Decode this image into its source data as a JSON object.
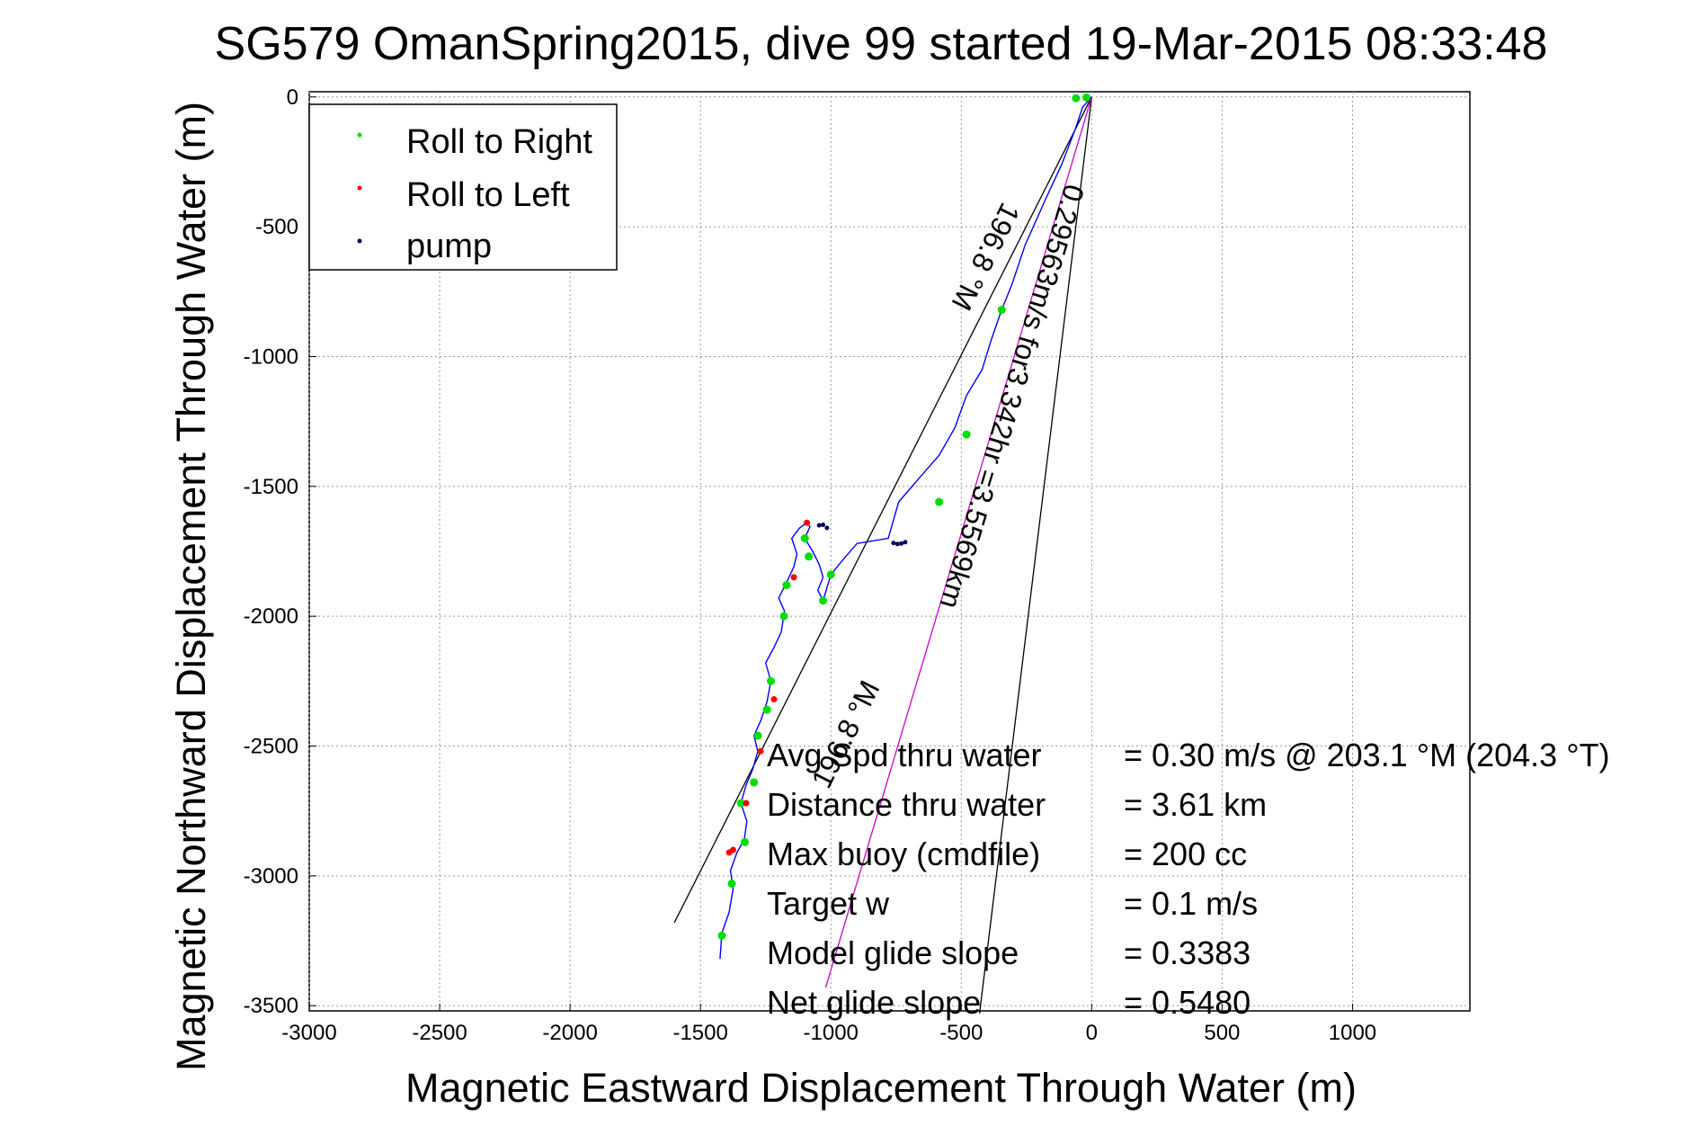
{
  "chart_data": {
    "type": "line",
    "title": "SG579 OmanSpring2015, dive 99 started 19-Mar-2015 08:33:48",
    "xlabel": "Magnetic Eastward Displacement Through Water (m)",
    "ylabel": "Magnetic Northward Displacement Through Water (m)",
    "xlim": [
      -3000,
      1450
    ],
    "ylim": [
      -3520,
      20
    ],
    "xticks": [
      -3000,
      -2500,
      -2000,
      -1500,
      -1000,
      -500,
      0,
      500,
      1000
    ],
    "yticks": [
      0,
      -500,
      -1000,
      -1500,
      -2000,
      -2500,
      -3000,
      -3500
    ],
    "grid": true,
    "legend_position": "top-left",
    "legend": [
      {
        "label": "Roll to Right",
        "color": "#00dd00"
      },
      {
        "label": "Roll to Left",
        "color": "#ff0000"
      },
      {
        "label": "pump",
        "color": "#000060"
      }
    ],
    "colors": {
      "track": "#0000ff",
      "course": "#cc00cc",
      "bounds": "#000000"
    },
    "track": {
      "x": [
        -1425,
        -1418,
        -1390,
        -1375,
        -1385,
        -1360,
        -1332,
        -1322,
        -1345,
        -1325,
        -1300,
        -1280,
        -1295,
        -1268,
        -1245,
        -1230,
        -1250,
        -1218,
        -1190,
        -1178,
        -1200,
        -1170,
        -1142,
        -1130,
        -1150,
        -1120,
        -1092,
        -1080,
        -1100,
        -1070,
        -1045,
        -1030,
        -1050,
        -1030,
        -1000,
        -960,
        -900,
        -780,
        -740,
        -650,
        -585,
        -525,
        -480,
        -420,
        -385,
        -345,
        -305,
        -255,
        -175,
        -115,
        -65,
        -35,
        0
      ],
      "y": [
        -3320,
        -3220,
        -3140,
        -3050,
        -2980,
        -2910,
        -2860,
        -2790,
        -2720,
        -2650,
        -2590,
        -2520,
        -2460,
        -2400,
        -2330,
        -2250,
        -2180,
        -2120,
        -2060,
        -1980,
        -1930,
        -1870,
        -1810,
        -1760,
        -1700,
        -1660,
        -1640,
        -1655,
        -1700,
        -1750,
        -1800,
        -1850,
        -1900,
        -1940,
        -1840,
        -1790,
        -1720,
        -1700,
        -1560,
        -1455,
        -1380,
        -1275,
        -1150,
        -1050,
        -935,
        -820,
        -720,
        -570,
        -390,
        -260,
        -130,
        -40,
        0
      ]
    },
    "roll_right_points": {
      "x": [
        -1418,
        -1380,
        -1330,
        -1345,
        -1295,
        -1280,
        -1230,
        -1245,
        -1180,
        -1170,
        -1085,
        -1030,
        -1100,
        -1000,
        -585,
        -480,
        -345,
        -60,
        -20
      ],
      "y": [
        -3230,
        -3030,
        -2870,
        -2720,
        -2640,
        -2460,
        -2250,
        -2360,
        -2000,
        -1880,
        -1770,
        -1940,
        -1700,
        -1840,
        -1560,
        -1300,
        -820,
        -5,
        -2
      ]
    },
    "roll_left_points": {
      "x": [
        -1390,
        -1325,
        -1270,
        -1218,
        -1142,
        -1092,
        -1375
      ],
      "y": [
        -2910,
        -2720,
        -2520,
        -2320,
        -1850,
        -1640,
        -2900
      ]
    },
    "pump_points": {
      "x": [
        -1045,
        -1030,
        -1015,
        -760,
        -745,
        -730,
        -715
      ],
      "y": [
        -1650,
        -1648,
        -1660,
        -1718,
        -1722,
        -1720,
        -1715
      ]
    },
    "lines": [
      {
        "name": "bound-left",
        "x": [
          0,
          -1600
        ],
        "y": [
          0,
          -3180
        ]
      },
      {
        "name": "bound-right",
        "x": [
          0,
          -430
        ],
        "y": [
          0,
          -3530
        ]
      },
      {
        "name": "course",
        "x": [
          0,
          -1020
        ],
        "y": [
          0,
          -3430
        ]
      }
    ],
    "annotations": {
      "bound_left_label": "196.8 °M",
      "course_label": "0.29563m/s for3.342hr =3.5569km",
      "bound_bottom_label": "196.8 °M"
    },
    "info_lines": [
      {
        "label": "Avg Spd thru water",
        "value": "=  0.30 m/s @ 203.1 °M (204.3 °T)"
      },
      {
        "label": "Distance thru water",
        "value": "=  3.61 km"
      },
      {
        "label": "Max buoy (cmdfile)",
        "value": "= 200 cc"
      },
      {
        "label": "Target w",
        "value": "= 0.1 m/s"
      },
      {
        "label": "Model glide slope",
        "value": "= 0.3383"
      },
      {
        "label": "Net glide slope",
        "value": "= 0.5480"
      }
    ]
  }
}
